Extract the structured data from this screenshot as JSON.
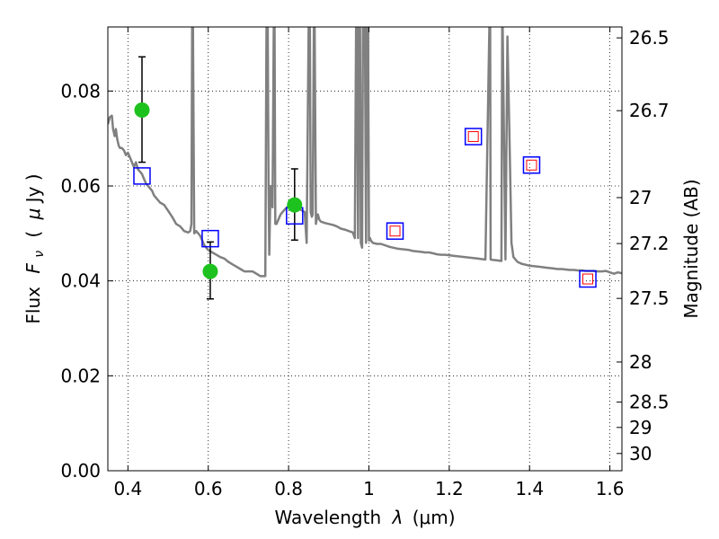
{
  "chart_data": {
    "type": "scatter",
    "title": "",
    "xlabel_text": "Wavelength",
    "xlabel_symbol": "λ",
    "xlabel_unit": "(μm)",
    "ylabel_text": "Flux",
    "ylabel_symbol": "F",
    "ylabel_sub": "ν",
    "ylabel_unit_open": "(",
    "ylabel_unit_mu": "μ",
    "ylabel_unit_rest": "Jy )",
    "y2label": "Magnitude (AB)",
    "xlim": [
      0.35,
      1.63
    ],
    "ylim": [
      0.0,
      0.0935
    ],
    "grid": true,
    "x_ticks": [
      0.4,
      0.6,
      0.8,
      1.0,
      1.2,
      1.4,
      1.6
    ],
    "x_tick_labels": [
      "0.4",
      "0.6",
      "0.8",
      "1",
      "1.2",
      "1.4",
      "1.6"
    ],
    "y_ticks": [
      0.0,
      0.02,
      0.04,
      0.06,
      0.08
    ],
    "y_tick_labels": [
      "0.00",
      "0.02",
      "0.04",
      "0.06",
      "0.08"
    ],
    "y2_ticks": [
      26.5,
      26.7,
      27,
      27.2,
      27.5,
      28,
      28.5,
      29,
      30
    ],
    "y2_tick_labels": [
      "26.5",
      "26.7",
      "27",
      "27.2",
      "27.5",
      "28",
      "28.5",
      "29",
      "30"
    ],
    "series": [
      {
        "kind": "line",
        "color": "#808080",
        "x": [
          0.35,
          0.355,
          0.36,
          0.363,
          0.367,
          0.37,
          0.373,
          0.377,
          0.38,
          0.385,
          0.39,
          0.395,
          0.4,
          0.405,
          0.41,
          0.415,
          0.42,
          0.425,
          0.43,
          0.435,
          0.44,
          0.445,
          0.45,
          0.455,
          0.46,
          0.465,
          0.47,
          0.48,
          0.49,
          0.5,
          0.51,
          0.52,
          0.53,
          0.54,
          0.55,
          0.555,
          0.558,
          0.56,
          0.562,
          0.565,
          0.57,
          0.58,
          0.59,
          0.6,
          0.61,
          0.62,
          0.63,
          0.64,
          0.65,
          0.66,
          0.67,
          0.68,
          0.69,
          0.7,
          0.71,
          0.72,
          0.73,
          0.738,
          0.742,
          0.745,
          0.748,
          0.75,
          0.752,
          0.755,
          0.76,
          0.763,
          0.765,
          0.767,
          0.77,
          0.78,
          0.79,
          0.8,
          0.81,
          0.82,
          0.83,
          0.84,
          0.845,
          0.85,
          0.853,
          0.855,
          0.858,
          0.86,
          0.863,
          0.865,
          0.868,
          0.87,
          0.873,
          0.876,
          0.88,
          0.89,
          0.9,
          0.91,
          0.92,
          0.93,
          0.94,
          0.95,
          0.96,
          0.965,
          0.968,
          0.97,
          0.973,
          0.975,
          0.978,
          0.98,
          0.983,
          0.985,
          0.99,
          0.993,
          0.995,
          0.998,
          1.0,
          1.003,
          1.005,
          1.01,
          1.02,
          1.03,
          1.04,
          1.05,
          1.06,
          1.07,
          1.08,
          1.09,
          1.1,
          1.11,
          1.12,
          1.13,
          1.14,
          1.15,
          1.16,
          1.17,
          1.18,
          1.19,
          1.2,
          1.21,
          1.22,
          1.23,
          1.24,
          1.25,
          1.26,
          1.27,
          1.28,
          1.29,
          1.3,
          1.302,
          1.303,
          1.31,
          1.32,
          1.33,
          1.332,
          1.333,
          1.34,
          1.345,
          1.35,
          1.355,
          1.36,
          1.37,
          1.38,
          1.39,
          1.4,
          1.41,
          1.42,
          1.43,
          1.44,
          1.45,
          1.46,
          1.47,
          1.48,
          1.49,
          1.5,
          1.51,
          1.52,
          1.53,
          1.54,
          1.55,
          1.56,
          1.57,
          1.58,
          1.59,
          1.6,
          1.61,
          1.62,
          1.63
        ],
        "y": [
          0.073,
          0.0745,
          0.0748,
          0.072,
          0.0705,
          0.072,
          0.07,
          0.0685,
          0.068,
          0.068,
          0.0675,
          0.0665,
          0.067,
          0.066,
          0.065,
          0.064,
          0.065,
          0.0635,
          0.063,
          0.0625,
          0.0615,
          0.0605,
          0.06,
          0.0595,
          0.059,
          0.058,
          0.0575,
          0.0565,
          0.056,
          0.0548,
          0.0535,
          0.052,
          0.0515,
          0.0505,
          0.0502,
          0.0505,
          0.052,
          0.0935,
          0.0935,
          0.05,
          0.0505,
          0.0495,
          0.0475,
          0.0465,
          0.046,
          0.0455,
          0.045,
          0.0447,
          0.044,
          0.0435,
          0.043,
          0.0425,
          0.042,
          0.042,
          0.042,
          0.0415,
          0.041,
          0.041,
          0.041,
          0.0935,
          0.0935,
          0.06,
          0.0455,
          0.06,
          0.0555,
          0.0935,
          0.0935,
          0.052,
          0.052,
          0.054,
          0.055,
          0.0558,
          0.056,
          0.0555,
          0.055,
          0.0545,
          0.048,
          0.0935,
          0.0935,
          0.0545,
          0.0535,
          0.054,
          0.0935,
          0.0935,
          0.052,
          0.053,
          0.054,
          0.053,
          0.0525,
          0.0522,
          0.052,
          0.0518,
          0.0515,
          0.051,
          0.0508,
          0.0505,
          0.0502,
          0.049,
          0.0935,
          0.0935,
          0.049,
          0.0935,
          0.0935,
          0.048,
          0.047,
          0.0935,
          0.0935,
          0.048,
          0.0935,
          0.0935,
          0.0485,
          0.049,
          0.0485,
          0.048,
          0.0478,
          0.0478,
          0.0475,
          0.0472,
          0.047,
          0.0468,
          0.0467,
          0.0466,
          0.0465,
          0.0463,
          0.0462,
          0.0461,
          0.046,
          0.046,
          0.0458,
          0.0456,
          0.0455,
          0.0455,
          0.0454,
          0.0453,
          0.0452,
          0.0451,
          0.045,
          0.0449,
          0.0448,
          0.0447,
          0.0446,
          0.0445,
          0.0935,
          0.0935,
          0.0445,
          0.0444,
          0.0443,
          0.0442,
          0.0935,
          0.0935,
          0.0445,
          0.0915,
          0.07,
          0.048,
          0.045,
          0.044,
          0.0436,
          0.0434,
          0.0432,
          0.0431,
          0.043,
          0.0429,
          0.0428,
          0.0427,
          0.0426,
          0.0425,
          0.0425,
          0.0424,
          0.0423,
          0.0423,
          0.0422,
          0.0422,
          0.0421,
          0.0421,
          0.0421,
          0.042,
          0.042,
          0.0421,
          0.0418,
          0.0415,
          0.0418,
          0.0416
        ]
      },
      {
        "kind": "points",
        "marker": "circle",
        "color": "#1ec21e",
        "x": [
          0.435,
          0.605,
          0.815
        ],
        "y": [
          0.076,
          0.042,
          0.056
        ],
        "yerr_low": [
          0.065,
          0.0362,
          0.0486
        ],
        "yerr_high": [
          0.0872,
          0.0482,
          0.0636
        ]
      },
      {
        "kind": "points",
        "marker": "square",
        "color": "#0000ff",
        "x": [
          0.435,
          0.605,
          0.815,
          1.065,
          1.26,
          1.405,
          1.545
        ],
        "y": [
          0.0621,
          0.0489,
          0.0537,
          0.0505,
          0.0704,
          0.0644,
          0.0404
        ]
      },
      {
        "kind": "points",
        "marker": "square",
        "color": "#ff0000",
        "x": [
          1.065,
          1.26,
          1.405,
          1.545
        ],
        "y": [
          0.0505,
          0.0704,
          0.0644,
          0.0404
        ]
      }
    ]
  }
}
